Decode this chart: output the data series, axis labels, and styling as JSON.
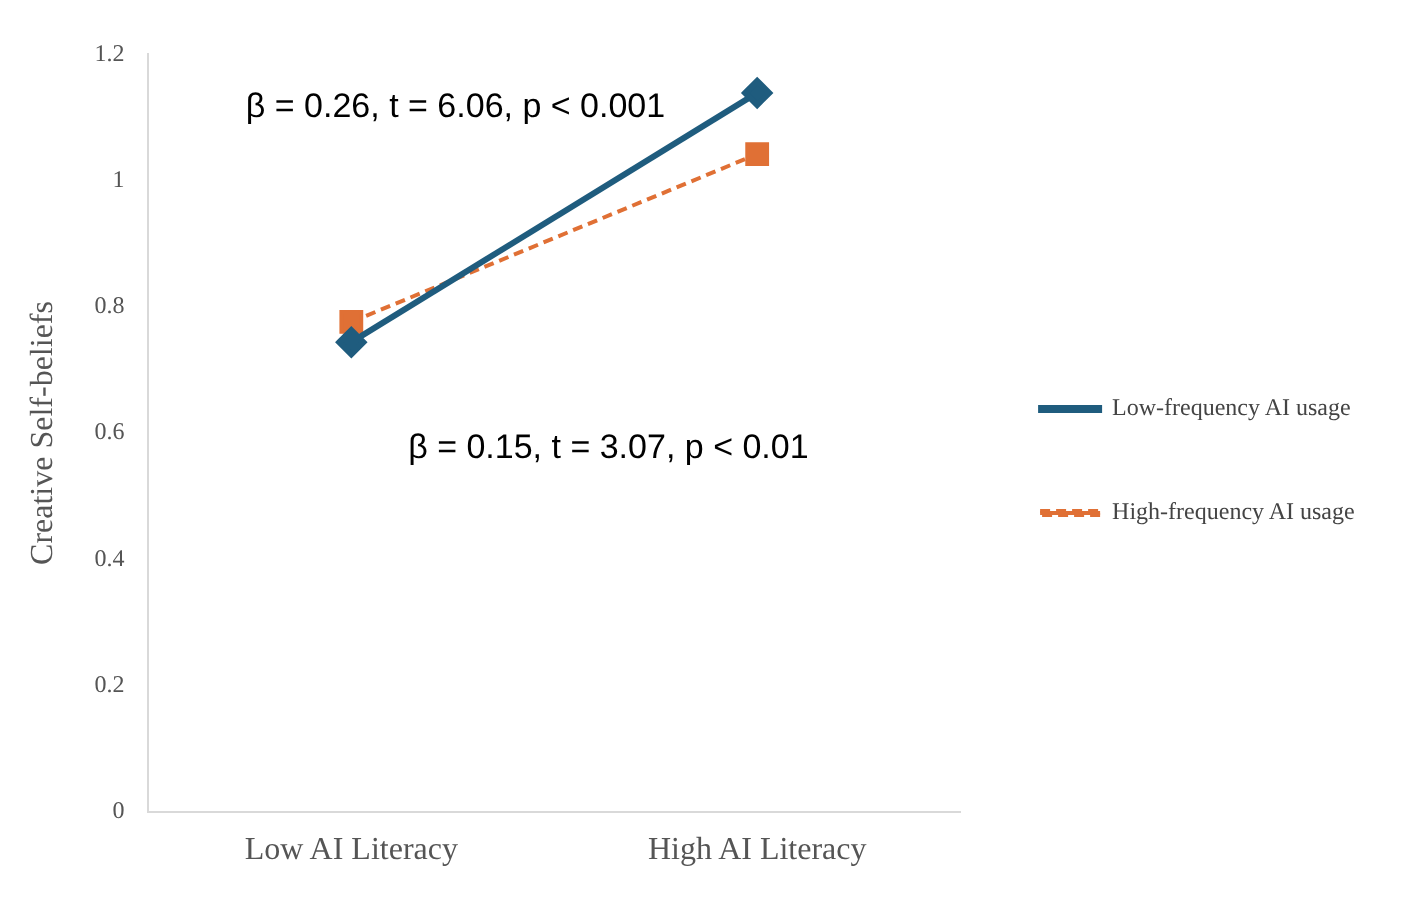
{
  "chart_data": {
    "type": "line",
    "ylabel": "Creative Self-beliefs",
    "categories": [
      "Low AI Literacy",
      "High AI Literacy"
    ],
    "series": [
      {
        "name": "Low-frequency AI usage",
        "color": "#1f5c7e",
        "values": [
          0.744,
          1.139
        ],
        "marker": "diamond",
        "line_style": "solid"
      },
      {
        "name": "High-frequency AI usage",
        "color": "#e07035",
        "values": [
          0.776,
          1.042
        ],
        "marker": "square",
        "line_style": "dashed"
      }
    ],
    "ylim": [
      0,
      1.2
    ],
    "yticks": [
      0,
      0.2,
      0.4,
      0.6,
      0.8,
      1,
      1.2
    ],
    "grid": false,
    "legend": "right",
    "annotations": [
      "β = 0.26, t = 6.06, p < 0.001",
      "β = 0.15, t = 3.07, p < 0.01"
    ]
  }
}
